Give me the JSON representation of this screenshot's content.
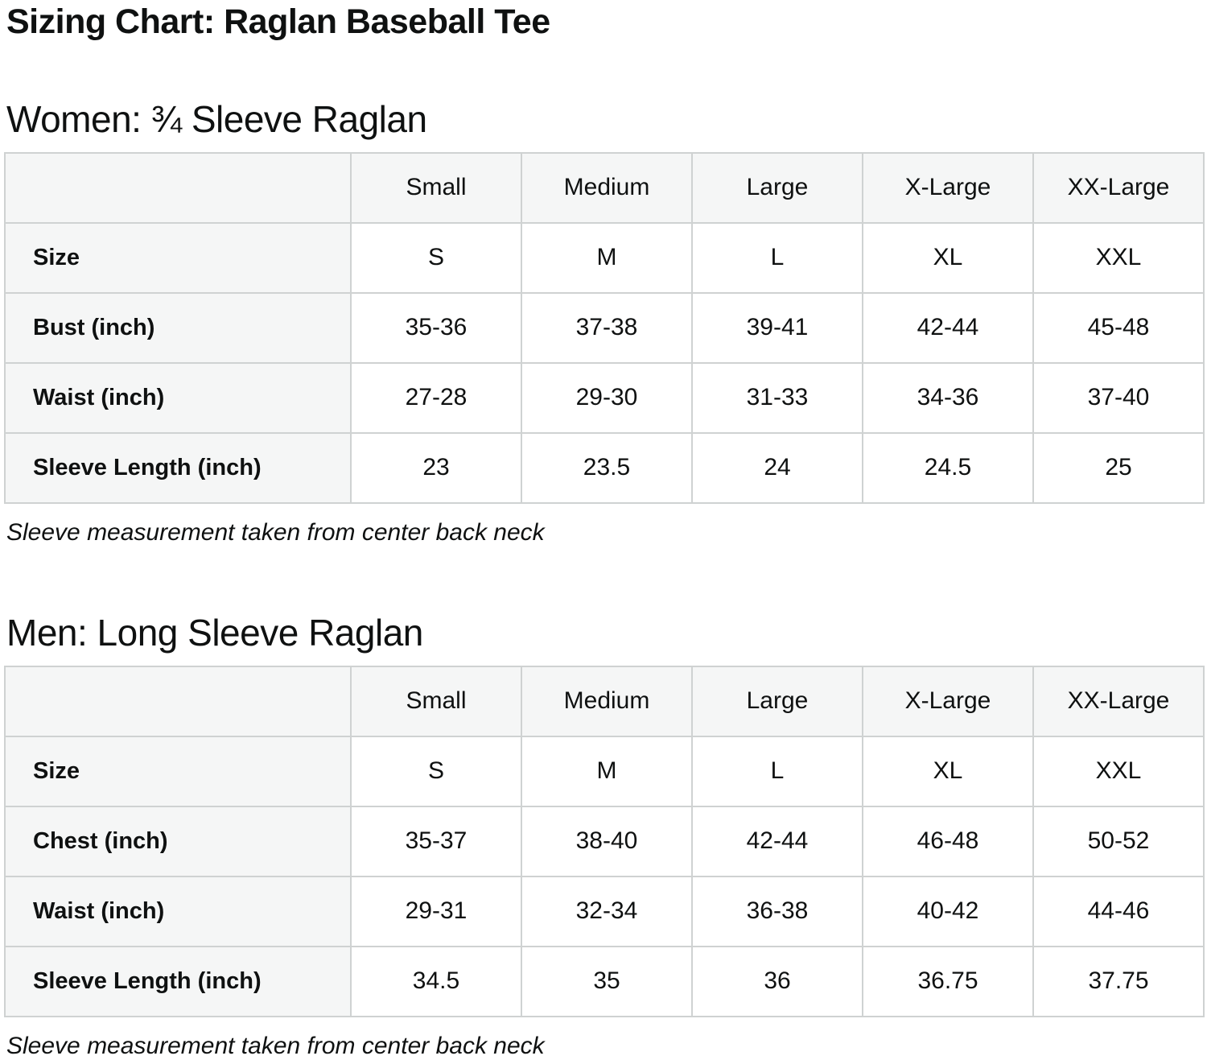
{
  "page": {
    "title": "Sizing Chart: Raglan Baseball Tee"
  },
  "colors": {
    "text": "#0f1111",
    "header_and_label_bg": "#f5f6f6",
    "border": "#cfd2d2",
    "cell_bg": "#ffffff"
  },
  "sections": [
    {
      "heading": "Women: ¾ Sleeve Raglan",
      "columns": [
        "Small",
        "Medium",
        "Large",
        "X-Large",
        "XX-Large"
      ],
      "rows": [
        {
          "label": "Size",
          "values": [
            "S",
            "M",
            "L",
            "XL",
            "XXL"
          ]
        },
        {
          "label": "Bust (inch)",
          "values": [
            "35-36",
            "37-38",
            "39-41",
            "42-44",
            "45-48"
          ]
        },
        {
          "label": "Waist (inch)",
          "values": [
            "27-28",
            "29-30",
            "31-33",
            "34-36",
            "37-40"
          ]
        },
        {
          "label": "Sleeve Length (inch)",
          "values": [
            "23",
            "23.5",
            "24",
            "24.5",
            "25"
          ]
        }
      ],
      "note": "Sleeve measurement taken from center back neck"
    },
    {
      "heading": "Men: Long Sleeve Raglan",
      "columns": [
        "Small",
        "Medium",
        "Large",
        "X-Large",
        "XX-Large"
      ],
      "rows": [
        {
          "label": "Size",
          "values": [
            "S",
            "M",
            "L",
            "XL",
            "XXL"
          ]
        },
        {
          "label": "Chest (inch)",
          "values": [
            "35-37",
            "38-40",
            "42-44",
            "46-48",
            "50-52"
          ]
        },
        {
          "label": "Waist (inch)",
          "values": [
            "29-31",
            "32-34",
            "36-38",
            "40-42",
            "44-46"
          ]
        },
        {
          "label": "Sleeve Length (inch)",
          "values": [
            "34.5",
            "35",
            "36",
            "36.75",
            "37.75"
          ]
        }
      ],
      "note": "Sleeve measurement taken from center back neck"
    }
  ]
}
